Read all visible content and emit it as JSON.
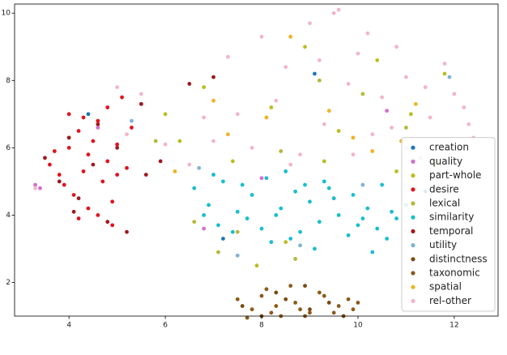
{
  "chart_data": {
    "type": "scatter",
    "xlim": [
      2.87,
      12.91
    ],
    "ylim": [
      1.0,
      10.27
    ],
    "xticks": [
      4,
      6,
      8,
      10,
      12
    ],
    "yticks": [
      2,
      4,
      6,
      8,
      10
    ],
    "legend": "lower right",
    "series": [
      {
        "name": "creation",
        "color": "#1f77b4",
        "x": [
          4.4,
          7.2,
          9.1,
          11.4
        ],
        "y": [
          7.0,
          3.3,
          8.2,
          4.7
        ]
      },
      {
        "name": "quality",
        "color": "#d36fd0",
        "x": [
          3.3,
          3.4,
          4.6,
          5.5,
          6.8,
          8.0,
          9.5,
          10.6
        ],
        "y": [
          4.9,
          4.8,
          6.6,
          7.3,
          3.6,
          5.1,
          4.5,
          7.1
        ]
      },
      {
        "name": "part-whole",
        "color": "#bcbd22",
        "x": [
          6.0,
          6.8,
          7.4,
          8.2,
          8.9,
          9.6,
          10.4,
          11.1,
          11.8,
          7.9,
          9.3,
          10.8,
          8.5,
          6.3
        ],
        "y": [
          7.0,
          7.8,
          5.6,
          7.2,
          9.0,
          6.5,
          8.6,
          7.0,
          8.2,
          2.5,
          5.6,
          5.3,
          3.2,
          6.2
        ]
      },
      {
        "name": "desire",
        "color": "#e0141e",
        "x": [
          3.6,
          3.8,
          4.0,
          4.2,
          4.4,
          4.6,
          4.8,
          5.0,
          5.2,
          3.9,
          4.1,
          4.3,
          4.5,
          4.7,
          4.9,
          5.1,
          4.0,
          4.4,
          4.8,
          5.3,
          3.7,
          4.2,
          4.6,
          5.0,
          4.3,
          4.9
        ],
        "y": [
          5.5,
          5.2,
          6.0,
          6.5,
          5.8,
          6.8,
          7.2,
          6.1,
          5.4,
          4.9,
          4.6,
          5.3,
          6.2,
          5.0,
          4.4,
          7.5,
          7.0,
          4.2,
          5.6,
          6.6,
          5.9,
          3.9,
          4.0,
          5.2,
          6.9,
          3.7
        ]
      },
      {
        "name": "lexical",
        "color": "#b5b73c",
        "x": [
          5.8,
          6.6,
          7.5,
          8.4,
          9.2,
          10.1,
          11.0,
          11.6,
          8.7,
          7.1
        ],
        "y": [
          6.2,
          3.8,
          3.5,
          5.9,
          8.0,
          7.6,
          6.6,
          5.5,
          2.7,
          2.9
        ]
      },
      {
        "name": "similarity",
        "color": "#17becf",
        "x": [
          6.6,
          6.9,
          7.2,
          7.5,
          7.8,
          8.1,
          8.4,
          8.7,
          9.0,
          9.3,
          9.6,
          9.9,
          10.2,
          10.5,
          10.8,
          11.0,
          6.8,
          7.1,
          7.4,
          7.7,
          8.0,
          8.3,
          8.6,
          8.9,
          9.2,
          9.5,
          9.8,
          10.1,
          10.4,
          10.7,
          7.0,
          7.6,
          8.2,
          8.8,
          9.4,
          10.0,
          10.6,
          9.1,
          8.5,
          10.3
        ],
        "y": [
          4.8,
          4.3,
          5.0,
          4.1,
          4.6,
          5.1,
          4.2,
          4.7,
          4.4,
          5.0,
          4.0,
          4.6,
          4.2,
          4.9,
          3.9,
          4.3,
          4.0,
          3.7,
          3.5,
          3.9,
          3.6,
          4.0,
          3.3,
          4.9,
          3.8,
          4.5,
          3.4,
          3.9,
          3.6,
          4.1,
          5.2,
          4.9,
          3.2,
          3.5,
          4.8,
          3.7,
          3.3,
          3.0,
          5.3,
          2.9
        ]
      },
      {
        "name": "temporal",
        "color": "#9b1b1f",
        "x": [
          3.5,
          4.0,
          4.5,
          5.0,
          5.5,
          4.2,
          4.8,
          5.2,
          3.8,
          4.6,
          5.6,
          4.1,
          5.9,
          6.5,
          7.0
        ],
        "y": [
          5.7,
          6.3,
          5.5,
          6.0,
          7.3,
          4.5,
          3.8,
          3.5,
          5.0,
          6.7,
          5.2,
          4.1,
          5.6,
          7.9,
          8.1
        ]
      },
      {
        "name": "utility",
        "color": "#7fb2d5",
        "x": [
          5.3,
          6.7,
          8.8,
          10.1,
          11.9,
          7.5
        ],
        "y": [
          6.8,
          5.4,
          3.1,
          4.9,
          8.1,
          2.8
        ]
      },
      {
        "name": "distinctness",
        "color": "#7a4a12",
        "x": [
          7.6,
          8.0,
          8.5,
          9.0,
          9.4,
          9.7,
          8.3,
          8.9
        ],
        "y": [
          1.3,
          1.0,
          1.5,
          1.2,
          1.4,
          1.0,
          1.7,
          1.9
        ]
      },
      {
        "name": "taxonomic",
        "color": "#8c5a1a",
        "x": [
          7.5,
          7.8,
          8.1,
          8.4,
          8.7,
          9.0,
          9.3,
          9.6,
          9.9,
          10.0,
          7.7,
          8.0,
          8.3,
          8.6,
          8.9,
          9.2,
          9.5,
          9.8,
          8.2,
          8.8
        ],
        "y": [
          1.5,
          1.2,
          1.8,
          1.0,
          1.4,
          1.1,
          1.6,
          1.3,
          1.2,
          1.4,
          0.95,
          1.6,
          1.3,
          1.9,
          1.0,
          1.7,
          1.1,
          1.5,
          1.1,
          1.2
        ]
      },
      {
        "name": "spatial",
        "color": "#f0b323",
        "x": [
          6.2,
          7.3,
          8.1,
          9.4,
          10.3,
          11.2,
          8.6,
          9.9,
          7.0,
          10.9
        ],
        "y": [
          5.3,
          6.4,
          6.9,
          7.1,
          5.9,
          7.3,
          9.3,
          6.3,
          7.4,
          6.2
        ]
      },
      {
        "name": "rel-other",
        "color": "#f2b6c8",
        "x": [
          7.0,
          7.5,
          8.0,
          8.5,
          9.0,
          9.5,
          10.0,
          10.5,
          11.0,
          11.5,
          12.0,
          12.4,
          7.3,
          7.8,
          8.3,
          8.8,
          9.3,
          9.8,
          10.3,
          10.8,
          11.3,
          11.8,
          12.2,
          6.5,
          6.0,
          5.5,
          5.0,
          9.2,
          9.6,
          10.2,
          8.6,
          11.0,
          11.7,
          12.3,
          3.3,
          5.2,
          6.8,
          9.9,
          10.7,
          11.4
        ],
        "y": [
          6.2,
          7.0,
          9.3,
          8.4,
          9.7,
          10.0,
          8.8,
          7.5,
          8.1,
          6.9,
          7.6,
          6.3,
          8.7,
          6.0,
          7.4,
          5.8,
          6.7,
          7.9,
          6.4,
          9.0,
          5.7,
          8.5,
          7.2,
          5.5,
          6.1,
          7.6,
          7.8,
          8.6,
          10.1,
          9.4,
          5.5,
          6.0,
          5.3,
          6.7,
          4.8,
          6.4,
          6.9,
          5.8,
          6.6,
          7.8
        ]
      }
    ]
  }
}
